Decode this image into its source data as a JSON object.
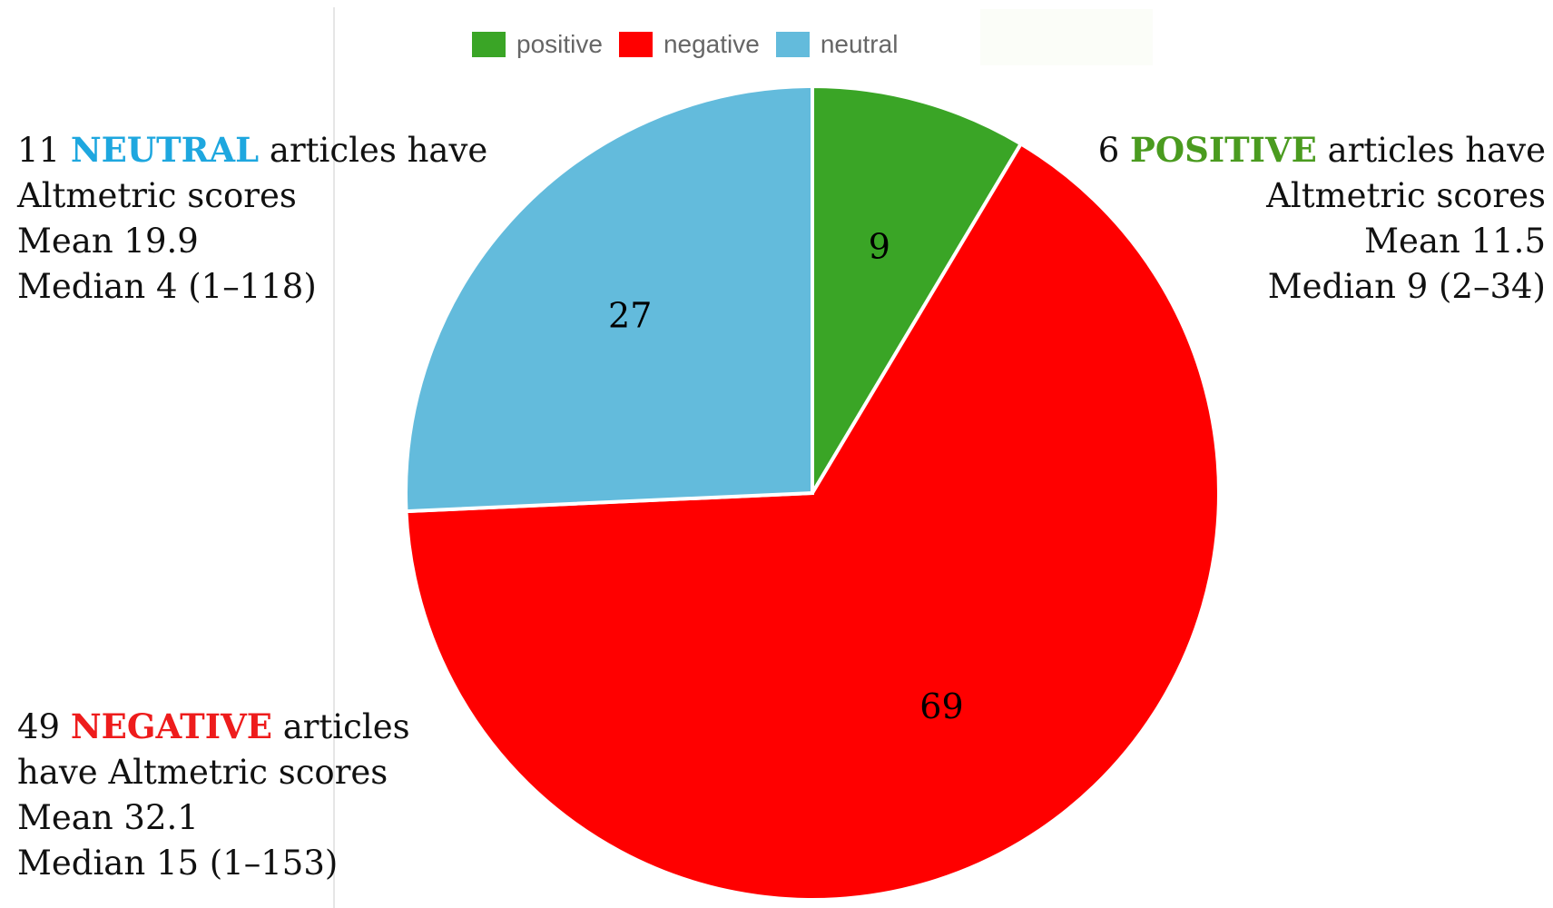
{
  "chart_data": {
    "type": "pie",
    "slices": [
      {
        "name": "positive",
        "value": 9,
        "color": "#3aa526"
      },
      {
        "name": "negative",
        "value": 69,
        "color": "#ff0000"
      },
      {
        "name": "neutral",
        "value": 27,
        "color": "#63bbdc"
      }
    ],
    "legend": {
      "placement": "top-center",
      "items": [
        "positive",
        "negative",
        "neutral"
      ]
    }
  },
  "annotations": {
    "neutral": {
      "count": "11",
      "category": "NEUTRAL",
      "color": "#1ea7df",
      "line1_rest": "articles have",
      "line2": "Altmetric scores",
      "line3": "Mean 19.9",
      "line4": "Median 4 (1–118)"
    },
    "positive": {
      "count": "6",
      "category": "POSITIVE",
      "color": "#4a9b1f",
      "line1_rest": "articles have",
      "line2": "Altmetric scores",
      "line3": "Mean 11.5",
      "line4": "Median 9 (2–34)"
    },
    "negative": {
      "count": "49",
      "category": "NEGATIVE",
      "color": "#ee1c1c",
      "line1_rest": "articles",
      "line2": "have Altmetric scores",
      "line3": "Mean 32.1",
      "line4": "Median 15 (1–153)"
    }
  }
}
